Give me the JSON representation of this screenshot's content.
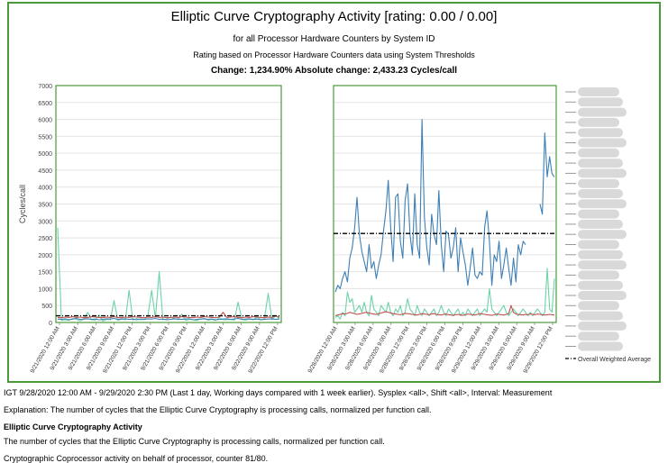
{
  "header": {
    "title": "Elliptic Curve Cryptography Activity [rating: 0.00 / 0.00]",
    "subtitle": "for all Processor Hardware Counters by System ID",
    "rating_note": "Rating based on Processor Hardware Counters data using System Thresholds",
    "change": "Change: 1,234.90% Absolute change: 2,433.23 Cycles/call"
  },
  "legend": {
    "average_label": "Overall Weighted Average"
  },
  "colors": {
    "frame": "#4a9a3a",
    "series_blue": "#3d7fb6",
    "series_green": "#6dd3a8",
    "series_red": "#c0504d",
    "average_line": "#000000"
  },
  "chart_data": [
    {
      "type": "line",
      "panel": "comparison week",
      "ylabel": "Cycles/call",
      "ylim": [
        0,
        7000
      ],
      "yticks": [
        "0",
        "500",
        "1000",
        "1500",
        "2000",
        "2500",
        "3000",
        "3500",
        "4000",
        "4500",
        "5000",
        "5500",
        "6000",
        "6500",
        "7000"
      ],
      "xticks": [
        "9/21/2020 12:00 AM",
        "9/21/2020 3:00 AM",
        "9/21/2020 6:00 AM",
        "9/21/2020 9:00 AM",
        "9/21/2020 12:00 PM",
        "9/21/2020 3:00 PM",
        "9/21/2020 6:00 PM",
        "9/21/2020 9:00 PM",
        "9/22/2020 12:00 AM",
        "9/22/2020 3:00 AM",
        "9/22/2020 6:00 AM",
        "9/22/2020 9:00 AM",
        "9/22/2020 12:00 PM"
      ],
      "average": 197,
      "series": [
        {
          "color": "green",
          "values": [
            2800,
            60,
            80,
            60,
            120,
            90,
            50,
            100,
            300,
            80,
            70,
            220,
            40,
            90,
            80,
            650,
            60,
            100,
            80,
            950,
            70,
            120,
            80,
            90,
            200,
            950,
            120,
            1500,
            80,
            100,
            160,
            120,
            80,
            250,
            60,
            90,
            80,
            60,
            100,
            120,
            70,
            90,
            60,
            140,
            80,
            80,
            90,
            70,
            600,
            90,
            70,
            100,
            80,
            160,
            90,
            100,
            860,
            80,
            200,
            100
          ]
        },
        {
          "color": "blue",
          "values": [
            100,
            90,
            110,
            80,
            100,
            120,
            90,
            100,
            110,
            90,
            100,
            80,
            90,
            110,
            100,
            120,
            90,
            100,
            110,
            90,
            100,
            80,
            100,
            90,
            110,
            100,
            120,
            90,
            100,
            80,
            90,
            110,
            100,
            90,
            100,
            110,
            80,
            90,
            100,
            110,
            90,
            100,
            80,
            90,
            100,
            110,
            90,
            100,
            120,
            90,
            100,
            110,
            90,
            100,
            80,
            90,
            100,
            110,
            90,
            100
          ]
        },
        {
          "color": "red",
          "values": [
            150,
            140,
            160,
            150,
            170,
            150,
            160,
            140,
            150,
            170,
            160,
            150,
            140,
            160,
            150,
            170,
            150,
            140,
            160,
            150,
            170,
            160,
            150,
            140,
            160,
            150,
            170,
            150,
            160,
            140,
            150,
            160,
            150,
            170,
            160,
            150,
            140,
            160,
            150,
            170,
            160,
            150,
            140,
            160,
            300,
            150,
            160,
            170,
            150,
            140,
            160,
            150,
            170,
            160,
            150,
            140,
            160,
            150,
            200,
            150
          ]
        }
      ]
    },
    {
      "type": "line",
      "panel": "current week",
      "ylim": [
        0,
        7000
      ],
      "xticks": [
        "9/28/2020 12:00 AM",
        "9/28/2020 3:00 AM",
        "9/28/2020 6:00 AM",
        "9/28/2020 9:00 AM",
        "9/28/2020 12:00 PM",
        "9/28/2020 3:00 PM",
        "9/28/2020 6:00 PM",
        "9/28/2020 9:00 PM",
        "9/29/2020 12:00 AM",
        "9/29/2020 3:00 AM",
        "9/29/2020 6:00 AM",
        "9/29/2020 9:00 AM",
        "9/29/2020 12:00 PM"
      ],
      "average": 2630,
      "series": [
        {
          "color": "blue",
          "values": [
            900,
            1100,
            1000,
            1300,
            1500,
            1200,
            1900,
            2200,
            2800,
            3700,
            2600,
            2100,
            1800,
            1500,
            2300,
            1600,
            1800,
            1300,
            1700,
            2000,
            2700,
            3300,
            4200,
            2800,
            1800,
            3700,
            3800,
            2400,
            1900,
            3600,
            4100,
            2600,
            2000,
            3800,
            2300,
            1900,
            6000,
            3100,
            2200,
            1700,
            3200,
            2600,
            2300,
            3900,
            2300,
            1500,
            2700,
            2600,
            1900,
            2200,
            2800,
            1500,
            2500,
            2100,
            1700,
            1100,
            1600,
            2200,
            1400,
            1300,
            1500,
            1400,
            2800,
            3300,
            2400,
            1100,
            2000,
            1800,
            2400,
            1300,
            1700,
            2200,
            1600,
            1100,
            1900,
            1200,
            2300,
            2000,
            2400,
            2300,
            null,
            null,
            null,
            null,
            null,
            3500,
            3200,
            5600,
            4300,
            4900,
            4400,
            4300
          ]
        },
        {
          "color": "green",
          "values": [
            150,
            200,
            100,
            300,
            200,
            900,
            600,
            700,
            300,
            400,
            500,
            300,
            600,
            300,
            200,
            800,
            400,
            300,
            200,
            500,
            400,
            300,
            600,
            300,
            200,
            400,
            300,
            500,
            200,
            300,
            700,
            400,
            300,
            200,
            500,
            300,
            200,
            400,
            300,
            200,
            300,
            400,
            200,
            300,
            500,
            300,
            200,
            400,
            300,
            200,
            300,
            400,
            200,
            300,
            200,
            400,
            300,
            200,
            300,
            400,
            200,
            300,
            400,
            300,
            1000,
            400,
            300,
            200,
            300,
            400,
            500,
            300,
            200,
            300,
            400,
            300,
            200,
            300,
            400,
            300,
            200,
            300,
            200,
            300,
            400,
            300,
            200,
            300,
            1600,
            400,
            300,
            1300
          ]
        },
        {
          "color": "red",
          "values": [
            200,
            220,
            240,
            260,
            250,
            270,
            300,
            280,
            260,
            240,
            250,
            270,
            290,
            300,
            280,
            260,
            250,
            240,
            260,
            280,
            300,
            320,
            300,
            280,
            260,
            250,
            240,
            230,
            250,
            270,
            260,
            250,
            240,
            230,
            220,
            240,
            260,
            250,
            240,
            230,
            250,
            260,
            240,
            230,
            220,
            240,
            250,
            230,
            220,
            210,
            230,
            240,
            220,
            210,
            230,
            250,
            240,
            230,
            220,
            240,
            260,
            250,
            240,
            230,
            220,
            210,
            230,
            250,
            240,
            230,
            220,
            240,
            260,
            500,
            300,
            250,
            240,
            230,
            220,
            240,
            230,
            250,
            240,
            230,
            250,
            240,
            230,
            220,
            230,
            240,
            230,
            220
          ]
        }
      ]
    }
  ],
  "footer": {
    "range": "IGT 9/28/2020 12:00 AM - 9/29/2020 2:30 PM (Last 1 day, Working days compared with 1 week earlier). Sysplex <all>, Shift <all>, Interval: Measurement",
    "explanation": "Explanation:    The number of cycles that the Elliptic Curve Cryptography is processing calls, normalized per function call.",
    "metric_title": "Elliptic Curve Cryptography Activity",
    "metric_desc": "The number of cycles that the Elliptic Curve Cryptography is processing calls, normalized per function call.",
    "coprocessor": "Cryptographic Coprocessor activity on behalf of processor, counter 81/80."
  }
}
